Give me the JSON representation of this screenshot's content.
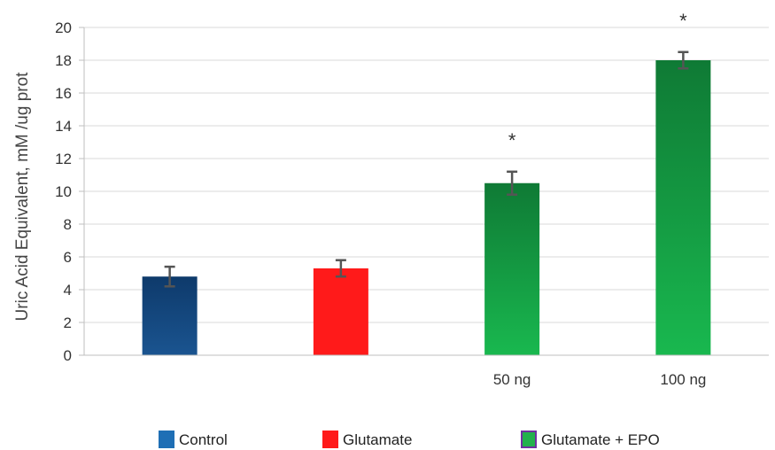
{
  "chart_data": {
    "type": "bar",
    "title": "",
    "xlabel": "",
    "ylabel": "Uric Acid Equivalent, mM /ug prot",
    "ylim": [
      0,
      20
    ],
    "yticks": [
      0,
      2,
      4,
      6,
      8,
      10,
      12,
      14,
      16,
      18,
      20
    ],
    "grid": true,
    "legend_position": "bottom",
    "categories": [
      "",
      "",
      "50 ng",
      "100 ng"
    ],
    "bars": [
      {
        "category": "",
        "group": "Control",
        "value": 4.8,
        "error": 0.6,
        "significance": ""
      },
      {
        "category": "",
        "group": "Glutamate",
        "value": 5.3,
        "error": 0.5,
        "significance": ""
      },
      {
        "category": "50 ng",
        "group": "Glutamate + EPO",
        "value": 10.5,
        "error": 0.7,
        "significance": "*"
      },
      {
        "category": "100 ng",
        "group": "Glutamate + EPO",
        "value": 18.0,
        "error": 0.5,
        "significance": "*"
      }
    ],
    "legend": [
      {
        "label": "Control",
        "color": "#1f6fb5",
        "border": "#1f6fb5"
      },
      {
        "label": "Glutamate",
        "color": "#ff1a1a",
        "border": "#ff1a1a"
      },
      {
        "label": "Glutamate + EPO",
        "color": "#22b14c",
        "border": "#7030a0"
      }
    ],
    "colors": {
      "Control": [
        "#0e3a6b",
        "#1a5490"
      ],
      "Glutamate": [
        "#ff1a1a",
        "#ff1a1a"
      ],
      "Glutamate + EPO": [
        "#0f7a35",
        "#19b84f"
      ],
      "error_bar": "#555555",
      "grid": "#d9d9d9",
      "axis": "#bfbfbf"
    }
  }
}
